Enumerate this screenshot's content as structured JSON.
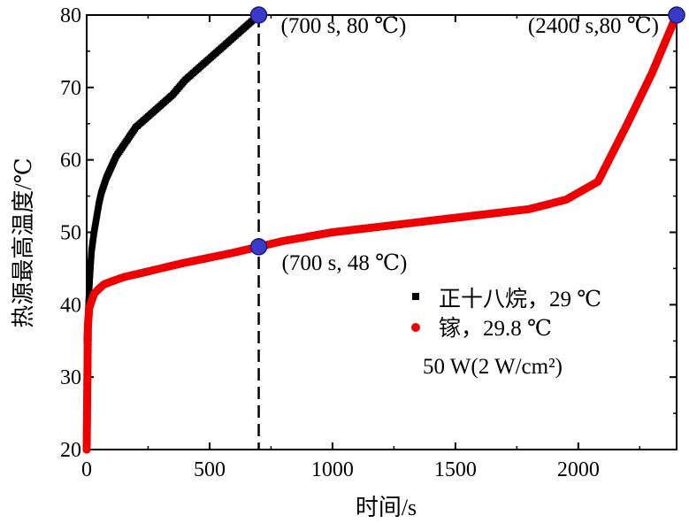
{
  "chart_data": {
    "type": "line",
    "xlabel": "时间/s",
    "ylabel": "热源最高温度/℃",
    "xlim": [
      0,
      2400
    ],
    "ylim": [
      20,
      80
    ],
    "xticks": [
      0,
      500,
      1000,
      1500,
      2000
    ],
    "yticks": [
      20,
      30,
      40,
      50,
      60,
      70,
      80
    ],
    "grid": false,
    "legend_position": "right-middle",
    "series": [
      {
        "name": "正十八烷，29 ℃",
        "marker": "square",
        "color": "#000000",
        "x": [
          0,
          5,
          10,
          15,
          20,
          30,
          40,
          50,
          60,
          80,
          100,
          120,
          150,
          200,
          250,
          300,
          350,
          400,
          450,
          500,
          550,
          600,
          650,
          700
        ],
        "y": [
          35,
          38,
          42,
          45,
          47.5,
          50,
          52,
          54,
          55.5,
          57.5,
          59,
          60.5,
          62,
          64.5,
          66,
          67.5,
          69,
          71,
          72.5,
          74,
          75.5,
          77,
          78.5,
          80
        ]
      },
      {
        "name": "镓，29.8 ℃",
        "marker": "circle",
        "color": "#ee0000",
        "x": [
          0,
          5,
          10,
          20,
          30,
          50,
          70,
          100,
          150,
          200,
          300,
          400,
          500,
          600,
          700,
          800,
          900,
          1000,
          1200,
          1400,
          1600,
          1800,
          1950,
          2080,
          2200,
          2300,
          2400
        ],
        "y": [
          20,
          37,
          39.5,
          40.5,
          41.5,
          42.2,
          42.8,
          43.2,
          43.8,
          44.2,
          45,
          45.8,
          46.5,
          47.2,
          48,
          48.8,
          49.4,
          50,
          50.8,
          51.6,
          52.4,
          53.2,
          54.5,
          57,
          65,
          72,
          80
        ]
      }
    ],
    "highlight_points": [
      {
        "x": 700,
        "y": 80,
        "label": "(700 s, 80 ℃)"
      },
      {
        "x": 2400,
        "y": 80,
        "label": "(2400 s,80 ℃)"
      },
      {
        "x": 700,
        "y": 48,
        "label": "(700 s, 48 ℃)"
      }
    ],
    "vline_x": 700,
    "annotation_extra": "50 W(2 W/cm²)"
  }
}
